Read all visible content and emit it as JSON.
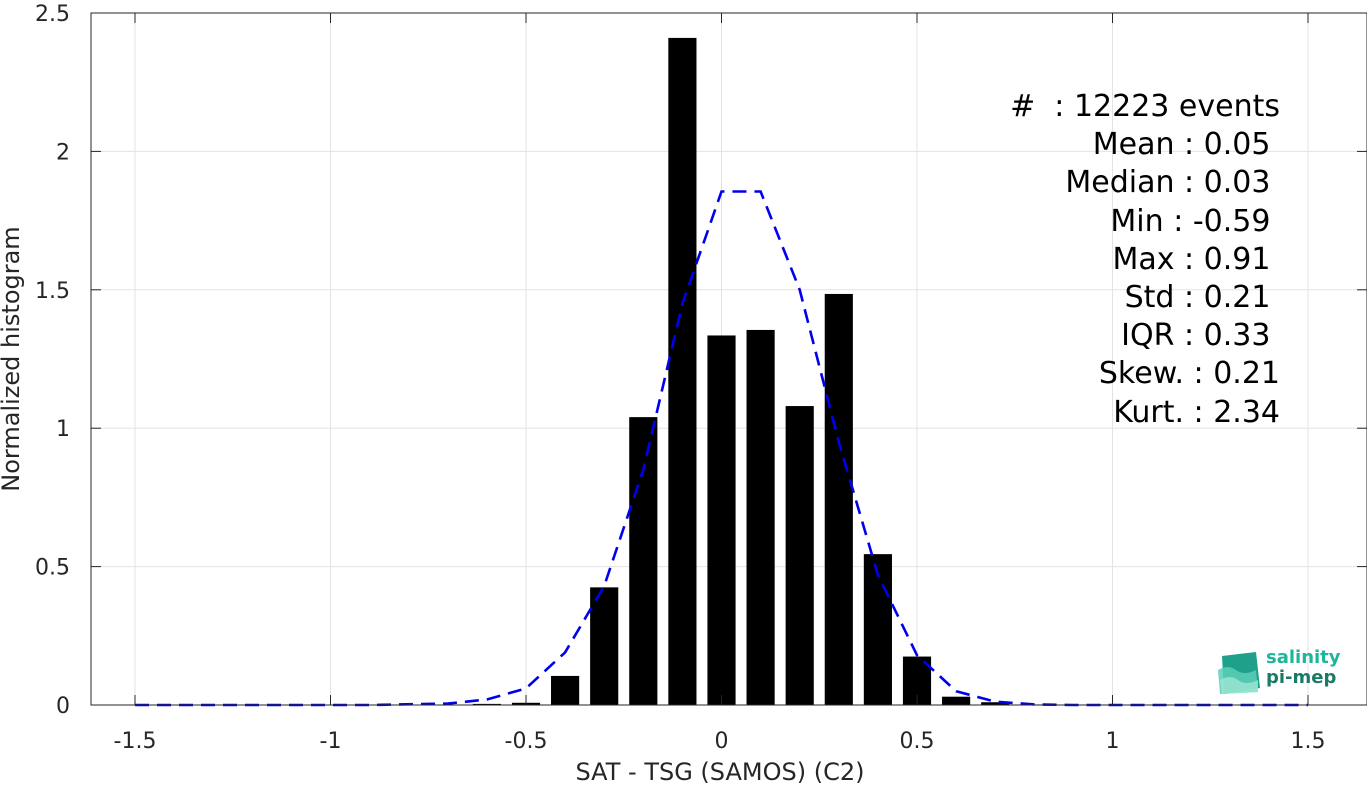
{
  "chart_data": {
    "type": "bar",
    "xlabel": "SAT - TSG (SAMOS) (C2)",
    "ylabel": "Normalized histogram",
    "xlim": [
      -1.5,
      1.5
    ],
    "ylim": [
      0,
      2.5
    ],
    "xticks": [
      "-1.5",
      "-1",
      "-0.5",
      "0",
      "0.5",
      "1",
      "1.5"
    ],
    "yticks": [
      "0",
      "0.5",
      "1",
      "1.5",
      "2",
      "2.5"
    ],
    "grid": true,
    "bar_color": "#000000",
    "bars": {
      "x": [
        -0.6,
        -0.5,
        -0.4,
        -0.3,
        -0.2,
        -0.1,
        0.0,
        0.1,
        0.2,
        0.3,
        0.4,
        0.5,
        0.6,
        0.7,
        0.8
      ],
      "values": [
        0.004,
        0.008,
        0.105,
        0.425,
        1.04,
        2.41,
        1.335,
        1.355,
        1.08,
        1.485,
        0.545,
        0.175,
        0.03,
        0.01,
        0.002
      ]
    },
    "fit_curve": {
      "style": "dashed",
      "color": "#0000ee",
      "x": [
        -1.5,
        -1.3,
        -1.1,
        -0.9,
        -0.7,
        -0.6,
        -0.5,
        -0.4,
        -0.3,
        -0.2,
        -0.1,
        0.0,
        0.1,
        0.2,
        0.3,
        0.4,
        0.5,
        0.6,
        0.7,
        0.8,
        0.9,
        1.1,
        1.3,
        1.5
      ],
      "y": [
        0,
        0,
        0,
        0,
        0.005,
        0.02,
        0.06,
        0.19,
        0.43,
        0.85,
        1.45,
        1.855,
        1.855,
        1.5,
        0.95,
        0.47,
        0.18,
        0.05,
        0.012,
        0.002,
        0,
        0,
        0,
        0
      ]
    }
  },
  "stats": [
    "#  : 12223 events",
    "Mean : 0.05 ",
    "Median : 0.03 ",
    "Min : -0.59 ",
    "Max : 0.91 ",
    "Std : 0.21 ",
    "IQR : 0.33 ",
    "Skew. : 0.21",
    "Kurt. : 2.34"
  ],
  "logo": {
    "line1": "salinity",
    "line2": "pi-mep",
    "color1": "#1fb59a",
    "color2": "#1a7a66"
  }
}
